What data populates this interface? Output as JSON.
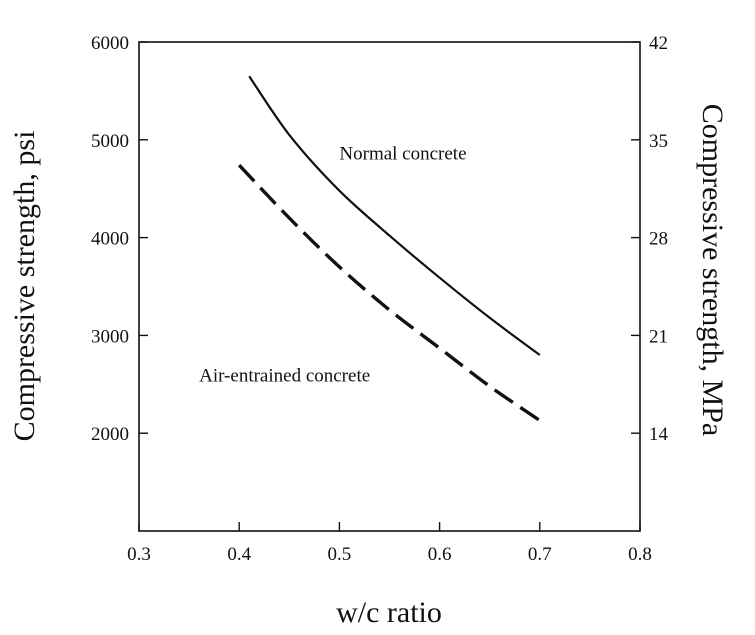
{
  "chart_data": {
    "type": "line",
    "title": "",
    "xlabel": "w/c ratio",
    "ylabel": "Compressive strength, psi",
    "y2label": "Compressive strength, MPa",
    "xlim": [
      0.3,
      0.8
    ],
    "ylim": [
      1000,
      6000
    ],
    "grid": false,
    "x_ticks": [
      "0.3",
      "0.4",
      "0.5",
      "0.6",
      "0.7",
      "0.8"
    ],
    "y_ticks": [
      "2000",
      "3000",
      "4000",
      "5000",
      "6000"
    ],
    "y2_ticks": [
      {
        "label": "14",
        "psi": 2000
      },
      {
        "label": "21",
        "psi": 3000
      },
      {
        "label": "28",
        "psi": 4000
      },
      {
        "label": "35",
        "psi": 5000
      },
      {
        "label": "42",
        "psi": 6000
      }
    ],
    "series": [
      {
        "name": "Normal concrete",
        "style": "solid",
        "color": "#111111",
        "x": [
          0.41,
          0.45,
          0.5,
          0.55,
          0.6,
          0.65,
          0.7
        ],
        "y": [
          5650,
          5050,
          4480,
          4020,
          3590,
          3180,
          2800
        ]
      },
      {
        "name": "Air-entrained concrete",
        "style": "dashed",
        "color": "#111111",
        "x": [
          0.4,
          0.45,
          0.5,
          0.55,
          0.6,
          0.65,
          0.7
        ],
        "y": [
          4740,
          4200,
          3700,
          3260,
          2870,
          2480,
          2130
        ]
      }
    ],
    "annotations": [
      {
        "text": "Normal concrete",
        "x": 0.5,
        "y": 4800
      },
      {
        "text": "Air-entrained concrete",
        "x": 0.36,
        "y": 2530
      }
    ]
  }
}
